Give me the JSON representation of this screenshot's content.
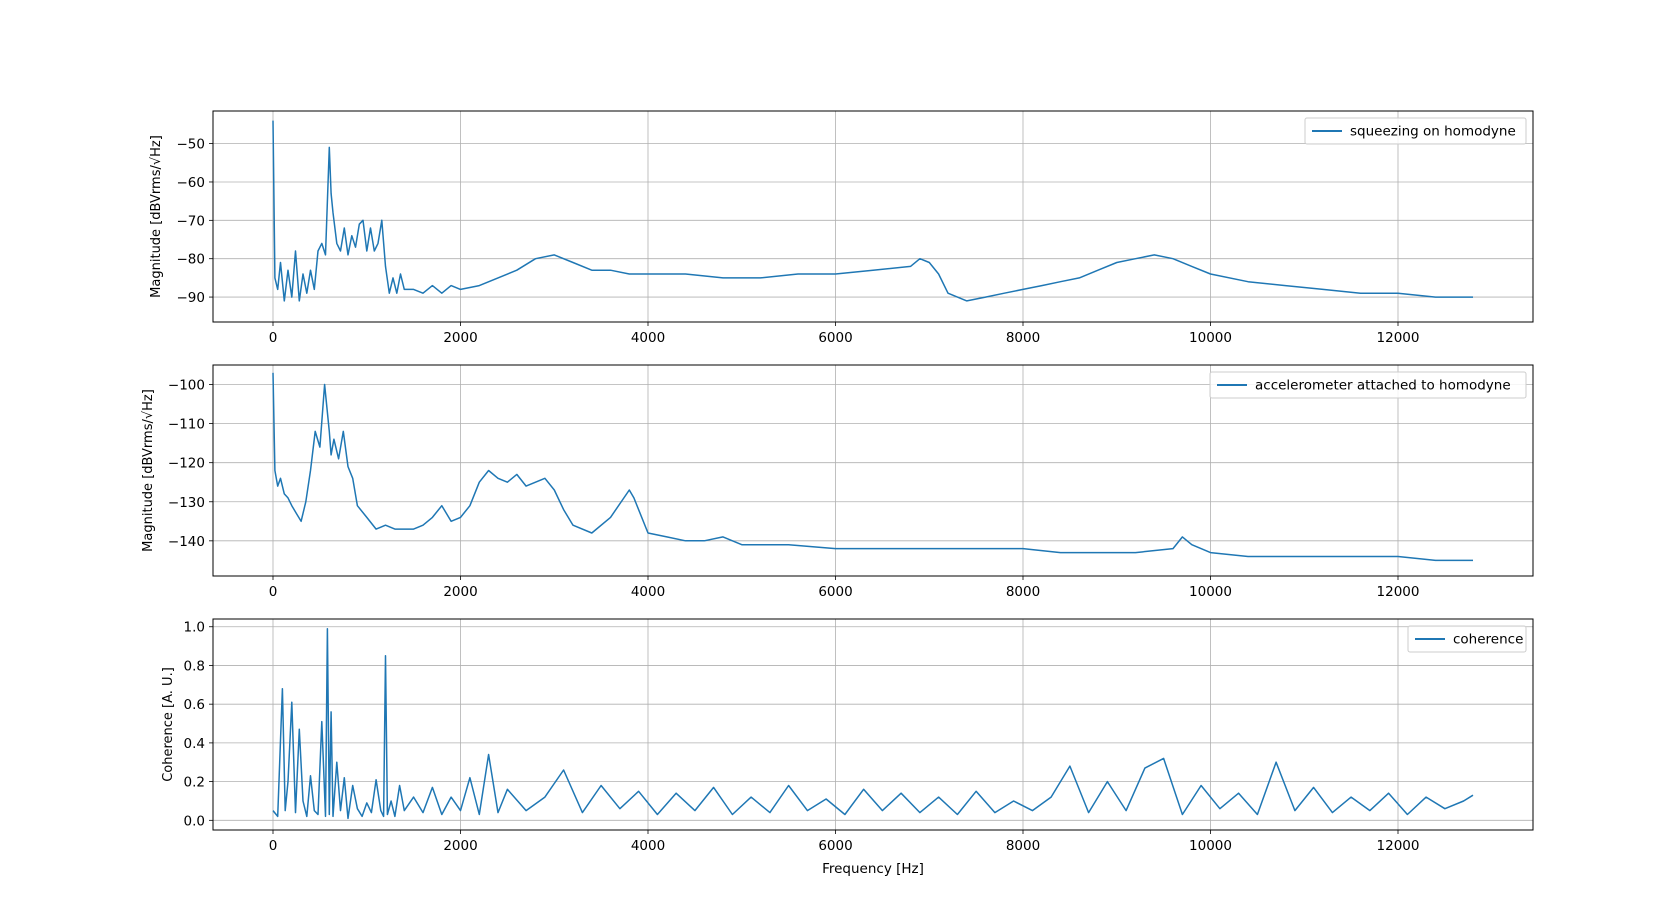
{
  "chart_data": [
    {
      "type": "line",
      "xlabel": "",
      "ylabel": "Magnitude [dBVrms/√Hz]",
      "xlim": [
        -640,
        13440
      ],
      "ylim": [
        -96.5,
        -41.5
      ],
      "xticks": [
        0,
        2000,
        4000,
        6000,
        8000,
        10000,
        12000
      ],
      "yticks": [
        -90,
        -80,
        -70,
        -60,
        -50
      ],
      "grid": true,
      "legend_position": "top-right",
      "color": "#1f77b4",
      "series": [
        {
          "name": "squeezing on homodyne",
          "x": [
            0,
            20,
            50,
            80,
            120,
            160,
            200,
            240,
            280,
            320,
            360,
            400,
            440,
            480,
            520,
            560,
            600,
            620,
            640,
            680,
            720,
            760,
            800,
            840,
            880,
            920,
            960,
            1000,
            1040,
            1080,
            1120,
            1160,
            1200,
            1240,
            1280,
            1320,
            1360,
            1400,
            1500,
            1600,
            1700,
            1800,
            1900,
            2000,
            2200,
            2400,
            2600,
            2800,
            3000,
            3200,
            3400,
            3600,
            3800,
            4000,
            4400,
            4800,
            5200,
            5600,
            6000,
            6400,
            6800,
            6900,
            7000,
            7100,
            7200,
            7400,
            7600,
            7800,
            8000,
            8200,
            8400,
            8600,
            8800,
            9000,
            9200,
            9400,
            9600,
            9800,
            10000,
            10400,
            10800,
            11200,
            11600,
            12000,
            12400,
            12800
          ],
          "y": [
            -44,
            -85,
            -88,
            -81,
            -91,
            -83,
            -90,
            -78,
            -91,
            -84,
            -89,
            -83,
            -88,
            -78,
            -76,
            -79,
            -51,
            -63,
            -68,
            -76,
            -78,
            -72,
            -79,
            -74,
            -77,
            -71,
            -70,
            -78,
            -72,
            -78,
            -76,
            -70,
            -82,
            -89,
            -85,
            -89,
            -84,
            -88,
            -88,
            -89,
            -87,
            -89,
            -87,
            -88,
            -87,
            -85,
            -83,
            -80,
            -79,
            -81,
            -83,
            -83,
            -84,
            -84,
            -84,
            -85,
            -85,
            -84,
            -84,
            -83,
            -82,
            -80,
            -81,
            -84,
            -89,
            -91,
            -90,
            -89,
            -88,
            -87,
            -86,
            -85,
            -83,
            -81,
            -80,
            -79,
            -80,
            -82,
            -84,
            -86,
            -87,
            -88,
            -89,
            -89,
            -90,
            -90
          ]
        }
      ]
    },
    {
      "type": "line",
      "xlabel": "",
      "ylabel": "Magnitude [dBVrms/√Hz]",
      "xlim": [
        -640,
        13440
      ],
      "ylim": [
        -149,
        -95
      ],
      "xticks": [
        0,
        2000,
        4000,
        6000,
        8000,
        10000,
        12000
      ],
      "yticks": [
        -140,
        -130,
        -120,
        -110,
        -100
      ],
      "grid": true,
      "legend_position": "top-right",
      "color": "#1f77b4",
      "series": [
        {
          "name": "accelerometer attached to homodyne",
          "x": [
            0,
            20,
            50,
            80,
            120,
            160,
            200,
            250,
            300,
            350,
            400,
            450,
            500,
            550,
            600,
            620,
            650,
            700,
            750,
            800,
            850,
            900,
            1000,
            1100,
            1200,
            1300,
            1400,
            1500,
            1600,
            1700,
            1800,
            1900,
            2000,
            2100,
            2200,
            2300,
            2400,
            2500,
            2600,
            2700,
            2800,
            2900,
            3000,
            3100,
            3200,
            3400,
            3600,
            3800,
            3850,
            4000,
            4200,
            4400,
            4600,
            4800,
            5000,
            5500,
            6000,
            6400,
            6800,
            7200,
            7600,
            8000,
            8400,
            8800,
            9200,
            9600,
            9700,
            9800,
            10000,
            10400,
            10800,
            11200,
            11600,
            12000,
            12400,
            12800
          ],
          "y": [
            -97,
            -122,
            -126,
            -124,
            -128,
            -129,
            -131,
            -133,
            -135,
            -130,
            -122,
            -112,
            -116,
            -100,
            -112,
            -118,
            -114,
            -119,
            -112,
            -121,
            -124,
            -131,
            -134,
            -137,
            -136,
            -137,
            -137,
            -137,
            -136,
            -134,
            -131,
            -135,
            -134,
            -131,
            -125,
            -122,
            -124,
            -125,
            -123,
            -126,
            -125,
            -124,
            -127,
            -132,
            -136,
            -138,
            -134,
            -127,
            -129,
            -138,
            -139,
            -140,
            -140,
            -139,
            -141,
            -141,
            -142,
            -142,
            -142,
            -142,
            -142,
            -142,
            -143,
            -143,
            -143,
            -142,
            -139,
            -141,
            -143,
            -144,
            -144,
            -144,
            -144,
            -144,
            -145,
            -145
          ]
        }
      ]
    },
    {
      "type": "line",
      "xlabel": "Frequency [Hz]",
      "ylabel": "Coherence [A. U.]",
      "xlim": [
        -640,
        13440
      ],
      "ylim": [
        -0.05,
        1.04
      ],
      "xticks": [
        0,
        2000,
        4000,
        6000,
        8000,
        10000,
        12000
      ],
      "yticks": [
        0.0,
        0.2,
        0.4,
        0.6,
        0.8,
        1.0
      ],
      "grid": true,
      "legend_position": "top-right",
      "color": "#1f77b4",
      "series": [
        {
          "name": "coherence",
          "x": [
            0,
            50,
            100,
            130,
            160,
            200,
            240,
            280,
            320,
            360,
            400,
            440,
            480,
            520,
            560,
            580,
            600,
            620,
            640,
            680,
            720,
            760,
            800,
            850,
            900,
            950,
            1000,
            1050,
            1100,
            1150,
            1180,
            1200,
            1220,
            1260,
            1300,
            1350,
            1400,
            1500,
            1600,
            1700,
            1800,
            1900,
            2000,
            2100,
            2200,
            2300,
            2400,
            2500,
            2700,
            2900,
            3100,
            3300,
            3500,
            3700,
            3900,
            4100,
            4300,
            4500,
            4700,
            4900,
            5100,
            5300,
            5500,
            5700,
            5900,
            6100,
            6300,
            6500,
            6700,
            6900,
            7100,
            7300,
            7500,
            7700,
            7900,
            8100,
            8300,
            8500,
            8700,
            8900,
            9100,
            9300,
            9500,
            9700,
            9900,
            10100,
            10300,
            10500,
            10700,
            10900,
            11100,
            11300,
            11500,
            11700,
            11900,
            12100,
            12300,
            12500,
            12700,
            12800
          ],
          "y": [
            0.05,
            0.02,
            0.68,
            0.05,
            0.2,
            0.61,
            0.04,
            0.47,
            0.1,
            0.02,
            0.23,
            0.05,
            0.03,
            0.51,
            0.02,
            0.99,
            0.03,
            0.56,
            0.02,
            0.3,
            0.05,
            0.22,
            0.01,
            0.18,
            0.06,
            0.02,
            0.09,
            0.04,
            0.21,
            0.05,
            0.02,
            0.85,
            0.03,
            0.1,
            0.02,
            0.18,
            0.05,
            0.12,
            0.04,
            0.17,
            0.03,
            0.12,
            0.05,
            0.22,
            0.03,
            0.34,
            0.04,
            0.16,
            0.05,
            0.12,
            0.26,
            0.04,
            0.18,
            0.06,
            0.15,
            0.03,
            0.14,
            0.05,
            0.17,
            0.03,
            0.12,
            0.04,
            0.18,
            0.05,
            0.11,
            0.03,
            0.16,
            0.05,
            0.14,
            0.04,
            0.12,
            0.03,
            0.15,
            0.04,
            0.1,
            0.05,
            0.12,
            0.28,
            0.04,
            0.2,
            0.05,
            0.27,
            0.32,
            0.03,
            0.18,
            0.06,
            0.14,
            0.03,
            0.3,
            0.05,
            0.17,
            0.04,
            0.12,
            0.05,
            0.14,
            0.03,
            0.12,
            0.06,
            0.1,
            0.13
          ]
        }
      ]
    }
  ]
}
